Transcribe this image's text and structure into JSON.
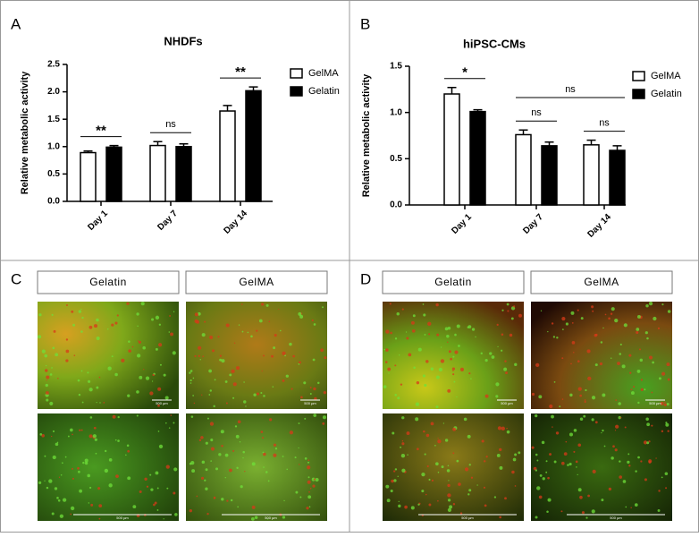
{
  "chart_data": [
    {
      "type": "bar",
      "panel": "A",
      "title": "NHDFs",
      "y_label": "Relative metabolic activity",
      "categories": [
        "Day 1",
        "Day 7",
        "Day 14"
      ],
      "series": [
        {
          "name": "GelMA",
          "color": "#ffffff",
          "values": [
            0.89,
            1.02,
            1.65
          ],
          "errors": [
            0.03,
            0.07,
            0.1
          ]
        },
        {
          "name": "Gelatin",
          "color": "#000000",
          "values": [
            0.99,
            1.0,
            2.02
          ],
          "errors": [
            0.03,
            0.05,
            0.07
          ]
        }
      ],
      "significance": [
        "**",
        "ns",
        "**"
      ],
      "ylim": [
        0,
        2.5
      ],
      "yticks": [
        {
          "value": 0,
          "label": "0.0"
        },
        0.5,
        {
          "value": 1,
          "label": "1.0"
        },
        1.5,
        {
          "value": 2,
          "label": "2.0"
        },
        2.5
      ]
    },
    {
      "type": "bar",
      "panel": "B",
      "title": "hiPSC-CMs",
      "y_label": "Relative metabolic activity",
      "categories": [
        "Day 1",
        "Day 7",
        "Day 14"
      ],
      "series": [
        {
          "name": "GelMA",
          "color": "#ffffff",
          "values": [
            1.2,
            0.76,
            0.65
          ],
          "errors": [
            0.07,
            0.05,
            0.05
          ]
        },
        {
          "name": "Gelatin",
          "color": "#000000",
          "values": [
            1.01,
            0.64,
            0.59
          ],
          "errors": [
            0.02,
            0.04,
            0.05
          ]
        }
      ],
      "significance": [
        "*",
        "ns",
        "ns"
      ],
      "group_comparison": "ns",
      "ylim": [
        0,
        1.5
      ],
      "yticks": [
        {
          "value": 0,
          "label": "0.0"
        },
        0.5,
        {
          "value": 1,
          "label": "1.0"
        },
        1.5
      ]
    }
  ],
  "image_panels": [
    {
      "panel": "C",
      "columns": [
        "Gelatin",
        "GelMA"
      ]
    },
    {
      "panel": "D",
      "columns": [
        "Gelatin",
        "GelMA"
      ]
    }
  ],
  "scale_bar": "500 µm"
}
